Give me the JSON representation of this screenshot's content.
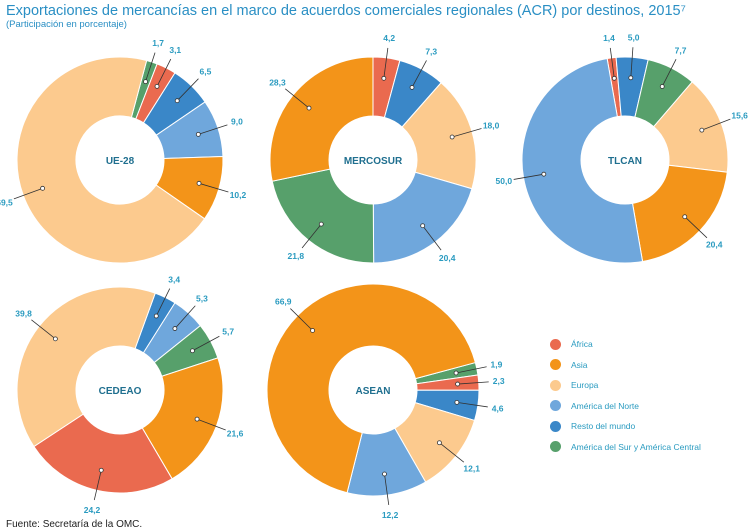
{
  "title": "Exportaciones de mercancías en el marco de acuerdos comerciales regionales (ACR) por destinos, 2015⁷",
  "subtitle": "(Participación en porcentaje)",
  "source": "Fuente: Secretaría de la OMC.",
  "colors": {
    "África": "#ea6a4f",
    "Asia": "#f39419",
    "Europa": "#fcca8e",
    "América del Norte": "#6fa7dc",
    "Resto del mundo": "#3a87c8",
    "América del Sur y América Central": "#57a06b"
  },
  "legend": [
    "África",
    "Asia",
    "Europa",
    "América del Norte",
    "Resto del mundo",
    "América del Sur y América Central"
  ],
  "chart_data": [
    {
      "type": "pie",
      "title": "UE-28",
      "categories": [
        "América del Sur y América Central",
        "África",
        "Resto del mundo",
        "América del Norte",
        "Asia",
        "Europa"
      ],
      "values": [
        1.7,
        3.1,
        6.5,
        9.0,
        10.2,
        69.5
      ],
      "labels": [
        "1,7",
        "3,1",
        "6,5",
        "9,0",
        "10,2",
        "69,5"
      ]
    },
    {
      "type": "pie",
      "title": "MERCOSUR",
      "categories": [
        "África",
        "Resto del mundo",
        "Europa",
        "América del Norte",
        "América del Sur y América Central",
        "Asia"
      ],
      "values": [
        4.2,
        7.3,
        18.0,
        20.4,
        21.8,
        28.3
      ],
      "labels": [
        "4,2",
        "7,3",
        "18,0",
        "20,4",
        "21,8",
        "28,3"
      ]
    },
    {
      "type": "pie",
      "title": "TLCAN",
      "categories": [
        "África",
        "Resto del mundo",
        "América del Sur y América Central",
        "Europa",
        "Asia",
        "América del Norte"
      ],
      "values": [
        1.4,
        5.0,
        7.7,
        15.6,
        20.4,
        50.0
      ],
      "labels": [
        "1,4",
        "5,0",
        "7,7",
        "15,6",
        "20,4",
        "50,0"
      ]
    },
    {
      "type": "pie",
      "title": "CEDEAO",
      "categories": [
        "Resto del mundo",
        "América del Norte",
        "América del Sur y América Central",
        "Asia",
        "África",
        "Europa"
      ],
      "values": [
        3.4,
        5.3,
        5.7,
        21.6,
        24.2,
        39.8
      ],
      "labels": [
        "3,4",
        "5,3",
        "5,7",
        "21,6",
        "24,2",
        "39,8"
      ]
    },
    {
      "type": "pie",
      "title": "ASEAN",
      "categories": [
        "América del Sur y América Central",
        "África",
        "Resto del mundo",
        "Europa",
        "América del Norte",
        "Asia"
      ],
      "values": [
        1.9,
        2.3,
        4.6,
        12.1,
        12.2,
        66.9
      ],
      "labels": [
        "1,9",
        "2,3",
        "4,6",
        "12,1",
        "12,2",
        "66,9"
      ]
    }
  ]
}
